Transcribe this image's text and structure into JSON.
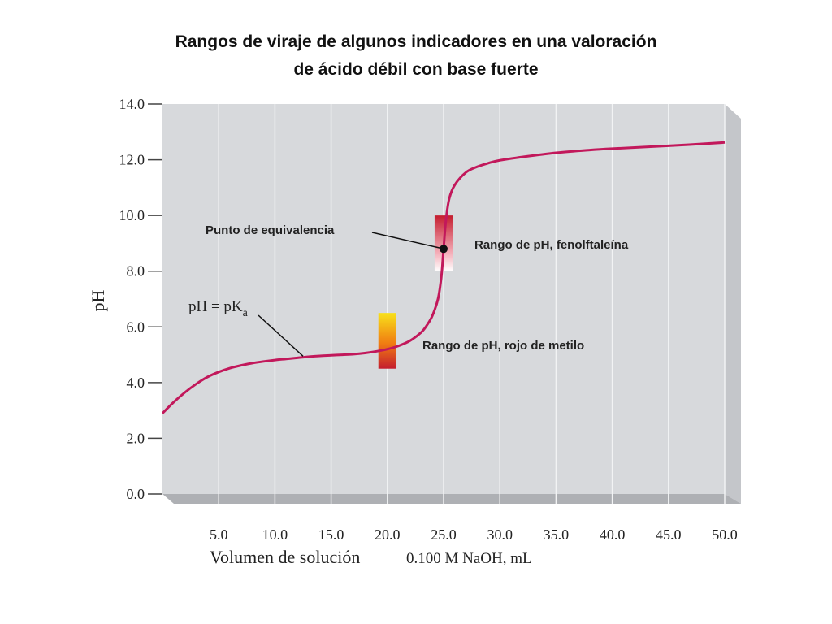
{
  "title_line1": "Rangos de viraje de algunos indicadores en una valoración",
  "title_line2": "de ácido débil con base fuerte",
  "chart_data": {
    "type": "line",
    "title": "Rangos de viraje de algunos indicadores en una valoración de ácido débil con base fuerte",
    "xlabel_main": "Volumen de solución",
    "xlabel_units": "0.100 M NaOH, mL",
    "ylabel": "pH",
    "xlim": [
      0,
      50
    ],
    "ylim": [
      0,
      14
    ],
    "x_ticks": [
      5.0,
      10.0,
      15.0,
      20.0,
      25.0,
      30.0,
      35.0,
      40.0,
      45.0,
      50.0
    ],
    "x_tick_labels": [
      "5.0",
      "10.0",
      "15.0",
      "20.0",
      "25.0",
      "30.0",
      "35.0",
      "40.0",
      "45.0",
      "50.0"
    ],
    "y_ticks": [
      0,
      2,
      4,
      6,
      8,
      10,
      12,
      14
    ],
    "y_tick_labels": [
      "0.0",
      "2.0",
      "4.0",
      "6.0",
      "8.0",
      "10.0",
      "12.0",
      "14.0"
    ],
    "grid": "vertical",
    "series": [
      {
        "color": "#c2185b",
        "x": [
          0,
          1,
          2,
          3,
          4,
          5,
          6,
          7,
          8,
          9,
          10,
          11,
          12,
          13,
          14,
          15,
          16,
          17,
          18,
          19,
          20,
          21,
          22,
          23,
          23.5,
          24,
          24.5,
          24.8,
          25.0,
          25.2,
          25.5,
          26,
          27,
          28,
          29,
          30,
          32,
          35,
          38,
          40,
          45,
          50
        ],
        "y": [
          2.9,
          3.3,
          3.65,
          3.95,
          4.2,
          4.38,
          4.52,
          4.62,
          4.7,
          4.76,
          4.81,
          4.85,
          4.89,
          4.93,
          4.96,
          4.98,
          5.0,
          5.02,
          5.06,
          5.12,
          5.2,
          5.32,
          5.5,
          5.8,
          6.05,
          6.4,
          7.0,
          7.8,
          8.8,
          9.8,
          10.6,
          11.1,
          11.55,
          11.75,
          11.88,
          11.98,
          12.1,
          12.25,
          12.35,
          12.4,
          12.5,
          12.62
        ]
      }
    ],
    "annotations": [
      {
        "label": "Punto de equivalencia",
        "x": 25.0,
        "y": 8.8
      },
      {
        "label_prefix": "pH = pK",
        "label_subscript": "a",
        "x": 12.5,
        "y": 4.95
      },
      {
        "label": "Rango de pH, fenolftaleína",
        "x_center": 25.0,
        "y_range": [
          8.0,
          10.0
        ]
      },
      {
        "label": "Rango de pH, rojo de metilo",
        "x_center": 20.0,
        "y_range": [
          4.5,
          6.5
        ]
      }
    ],
    "indicator_bars": [
      {
        "name": "fenolftaleína",
        "x_center": 25.0,
        "width_ml": 1.6,
        "y_range": [
          8.0,
          10.0
        ],
        "colors": [
          "#ffffff",
          "#f3a9b4",
          "#c41d2f"
        ]
      },
      {
        "name": "rojo de metilo",
        "x_center": 20.0,
        "width_ml": 1.6,
        "y_range": [
          4.5,
          6.5
        ],
        "colors": [
          "#c41d2f",
          "#f07b12",
          "#f8e11a"
        ]
      }
    ]
  }
}
